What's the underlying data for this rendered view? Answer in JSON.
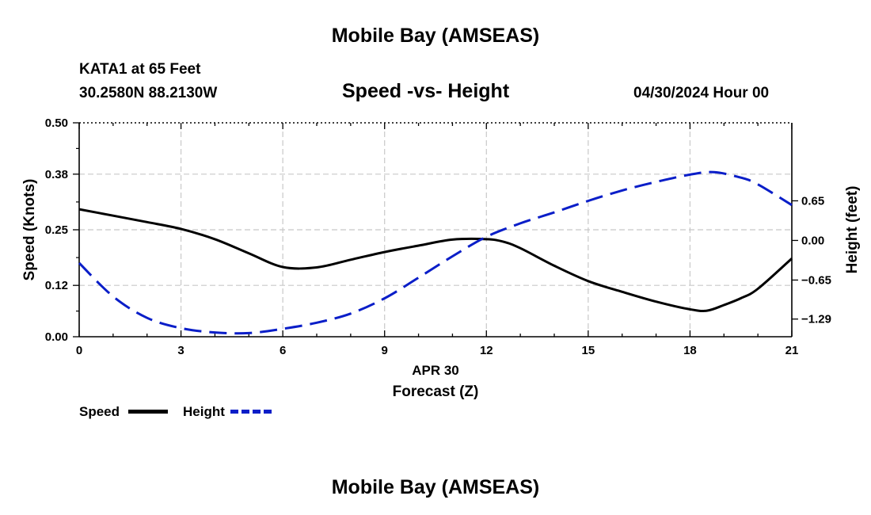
{
  "header": {
    "title": "Mobile Bay (AMSEAS)",
    "station": "KATA1 at 65 Feet",
    "location": "30.2580N  88.2130W",
    "subtitle": "Speed -vs- Height",
    "datetime": "04/30/2024 Hour 00"
  },
  "footer": {
    "title": "Mobile Bay (AMSEAS)"
  },
  "legend": {
    "speed_label": "Speed",
    "height_label": "Height",
    "speed_color": "#000000",
    "height_color": "#0a1ec8"
  },
  "chart_data": {
    "type": "line",
    "title": "Speed -vs- Height",
    "xlabel": "Forecast (Z)",
    "xsublabel": "APR 30",
    "ylabel": "Speed (Knots)",
    "y2label": "Height (feet)",
    "xlim": [
      0,
      21
    ],
    "ylim": [
      0,
      0.5
    ],
    "y2lim": [
      -1.58,
      1.93
    ],
    "xticks": [
      0,
      3,
      6,
      9,
      12,
      15,
      18,
      21
    ],
    "yticks": [
      0.0,
      0.12,
      0.25,
      0.38,
      0.5
    ],
    "yticklabels": [
      "0.00",
      "0.12",
      "0.25",
      "0.38",
      "0.50"
    ],
    "y2ticks": [
      -1.29,
      -0.65,
      0.0,
      0.65
    ],
    "y2ticklabels": [
      "−1.29",
      "−0.65",
      "0.00",
      "0.65"
    ],
    "grid": true,
    "series": [
      {
        "name": "Speed",
        "axis": "left",
        "style": "solid",
        "x": [
          0,
          1,
          2,
          3,
          4,
          5,
          6,
          7,
          8,
          9,
          10,
          11,
          12,
          12.5,
          13,
          14,
          15,
          16,
          17,
          18,
          18.5,
          19,
          19.5,
          20,
          21
        ],
        "y": [
          0.298,
          0.283,
          0.268,
          0.252,
          0.228,
          0.195,
          0.163,
          0.162,
          0.18,
          0.198,
          0.213,
          0.227,
          0.228,
          0.222,
          0.207,
          0.166,
          0.13,
          0.105,
          0.082,
          0.064,
          0.061,
          0.074,
          0.09,
          0.112,
          0.183
        ]
      },
      {
        "name": "Height",
        "axis": "right",
        "style": "dashed",
        "x": [
          0,
          1,
          2,
          3,
          4,
          5,
          6,
          7,
          8,
          9,
          10,
          11,
          12,
          13,
          14,
          15,
          16,
          17,
          18,
          18.7,
          19.5,
          20,
          21
        ],
        "y": [
          -0.37,
          -0.92,
          -1.27,
          -1.44,
          -1.51,
          -1.52,
          -1.45,
          -1.35,
          -1.2,
          -0.95,
          -0.61,
          -0.26,
          0.06,
          0.28,
          0.46,
          0.65,
          0.82,
          0.96,
          1.08,
          1.12,
          1.03,
          0.92,
          0.58
        ]
      }
    ]
  }
}
